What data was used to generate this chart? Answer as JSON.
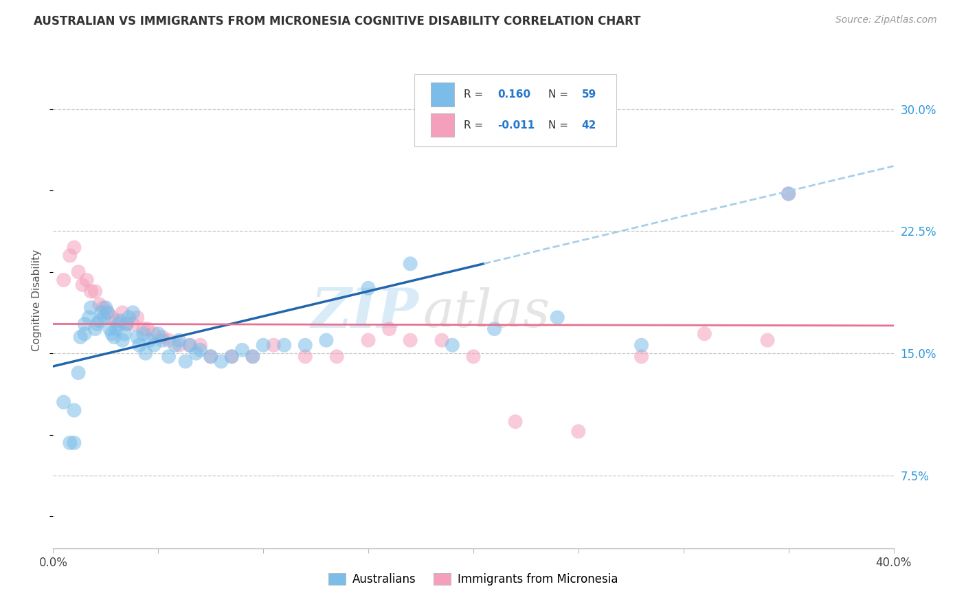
{
  "title": "AUSTRALIAN VS IMMIGRANTS FROM MICRONESIA COGNITIVE DISABILITY CORRELATION CHART",
  "source": "Source: ZipAtlas.com",
  "ylabel": "Cognitive Disability",
  "right_ytick_vals": [
    0.075,
    0.15,
    0.225,
    0.3
  ],
  "right_ytick_labels": [
    "7.5%",
    "15.0%",
    "22.5%",
    "30.0%"
  ],
  "xlim": [
    0.0,
    0.4
  ],
  "ylim": [
    0.03,
    0.335
  ],
  "r_aus": 0.16,
  "n_aus": 59,
  "r_mic": -0.011,
  "n_mic": 42,
  "color_aus": "#7bbde8",
  "color_mic": "#f4a0bc",
  "line_color_aus_solid": "#2166ac",
  "line_color_aus_dashed": "#a8cfe8",
  "line_color_mic": "#e87090",
  "background": "#ffffff",
  "grid_color": "#c8c8c8",
  "legend_text_color": "#2277cc",
  "aus_line_solid_end": 0.205,
  "australians_x": [
    0.005,
    0.008,
    0.01,
    0.01,
    0.012,
    0.013,
    0.015,
    0.015,
    0.017,
    0.018,
    0.02,
    0.021,
    0.022,
    0.023,
    0.024,
    0.025,
    0.026,
    0.027,
    0.028,
    0.029,
    0.03,
    0.031,
    0.032,
    0.033,
    0.034,
    0.035,
    0.036,
    0.038,
    0.04,
    0.041,
    0.043,
    0.044,
    0.046,
    0.048,
    0.05,
    0.052,
    0.055,
    0.058,
    0.06,
    0.063,
    0.065,
    0.068,
    0.07,
    0.075,
    0.08,
    0.085,
    0.09,
    0.095,
    0.1,
    0.11,
    0.12,
    0.13,
    0.15,
    0.17,
    0.19,
    0.21,
    0.24,
    0.28,
    0.35
  ],
  "australians_y": [
    0.12,
    0.095,
    0.095,
    0.115,
    0.138,
    0.16,
    0.162,
    0.168,
    0.172,
    0.178,
    0.165,
    0.168,
    0.17,
    0.175,
    0.172,
    0.178,
    0.175,
    0.165,
    0.162,
    0.16,
    0.165,
    0.168,
    0.17,
    0.158,
    0.162,
    0.168,
    0.172,
    0.175,
    0.16,
    0.155,
    0.162,
    0.15,
    0.158,
    0.155,
    0.162,
    0.158,
    0.148,
    0.155,
    0.158,
    0.145,
    0.155,
    0.15,
    0.152,
    0.148,
    0.145,
    0.148,
    0.152,
    0.148,
    0.155,
    0.155,
    0.155,
    0.158,
    0.19,
    0.205,
    0.155,
    0.165,
    0.172,
    0.155,
    0.248
  ],
  "micronesia_x": [
    0.005,
    0.008,
    0.01,
    0.012,
    0.014,
    0.016,
    0.018,
    0.02,
    0.022,
    0.024,
    0.026,
    0.028,
    0.03,
    0.033,
    0.035,
    0.038,
    0.04,
    0.043,
    0.045,
    0.048,
    0.052,
    0.055,
    0.06,
    0.065,
    0.07,
    0.075,
    0.085,
    0.095,
    0.105,
    0.12,
    0.135,
    0.15,
    0.16,
    0.17,
    0.185,
    0.2,
    0.22,
    0.25,
    0.28,
    0.31,
    0.34,
    0.35
  ],
  "micronesia_y": [
    0.195,
    0.21,
    0.215,
    0.2,
    0.192,
    0.195,
    0.188,
    0.188,
    0.18,
    0.178,
    0.175,
    0.172,
    0.17,
    0.175,
    0.168,
    0.168,
    0.172,
    0.165,
    0.165,
    0.162,
    0.16,
    0.158,
    0.155,
    0.155,
    0.155,
    0.148,
    0.148,
    0.148,
    0.155,
    0.148,
    0.148,
    0.158,
    0.165,
    0.158,
    0.158,
    0.148,
    0.108,
    0.102,
    0.148,
    0.162,
    0.158,
    0.248
  ]
}
